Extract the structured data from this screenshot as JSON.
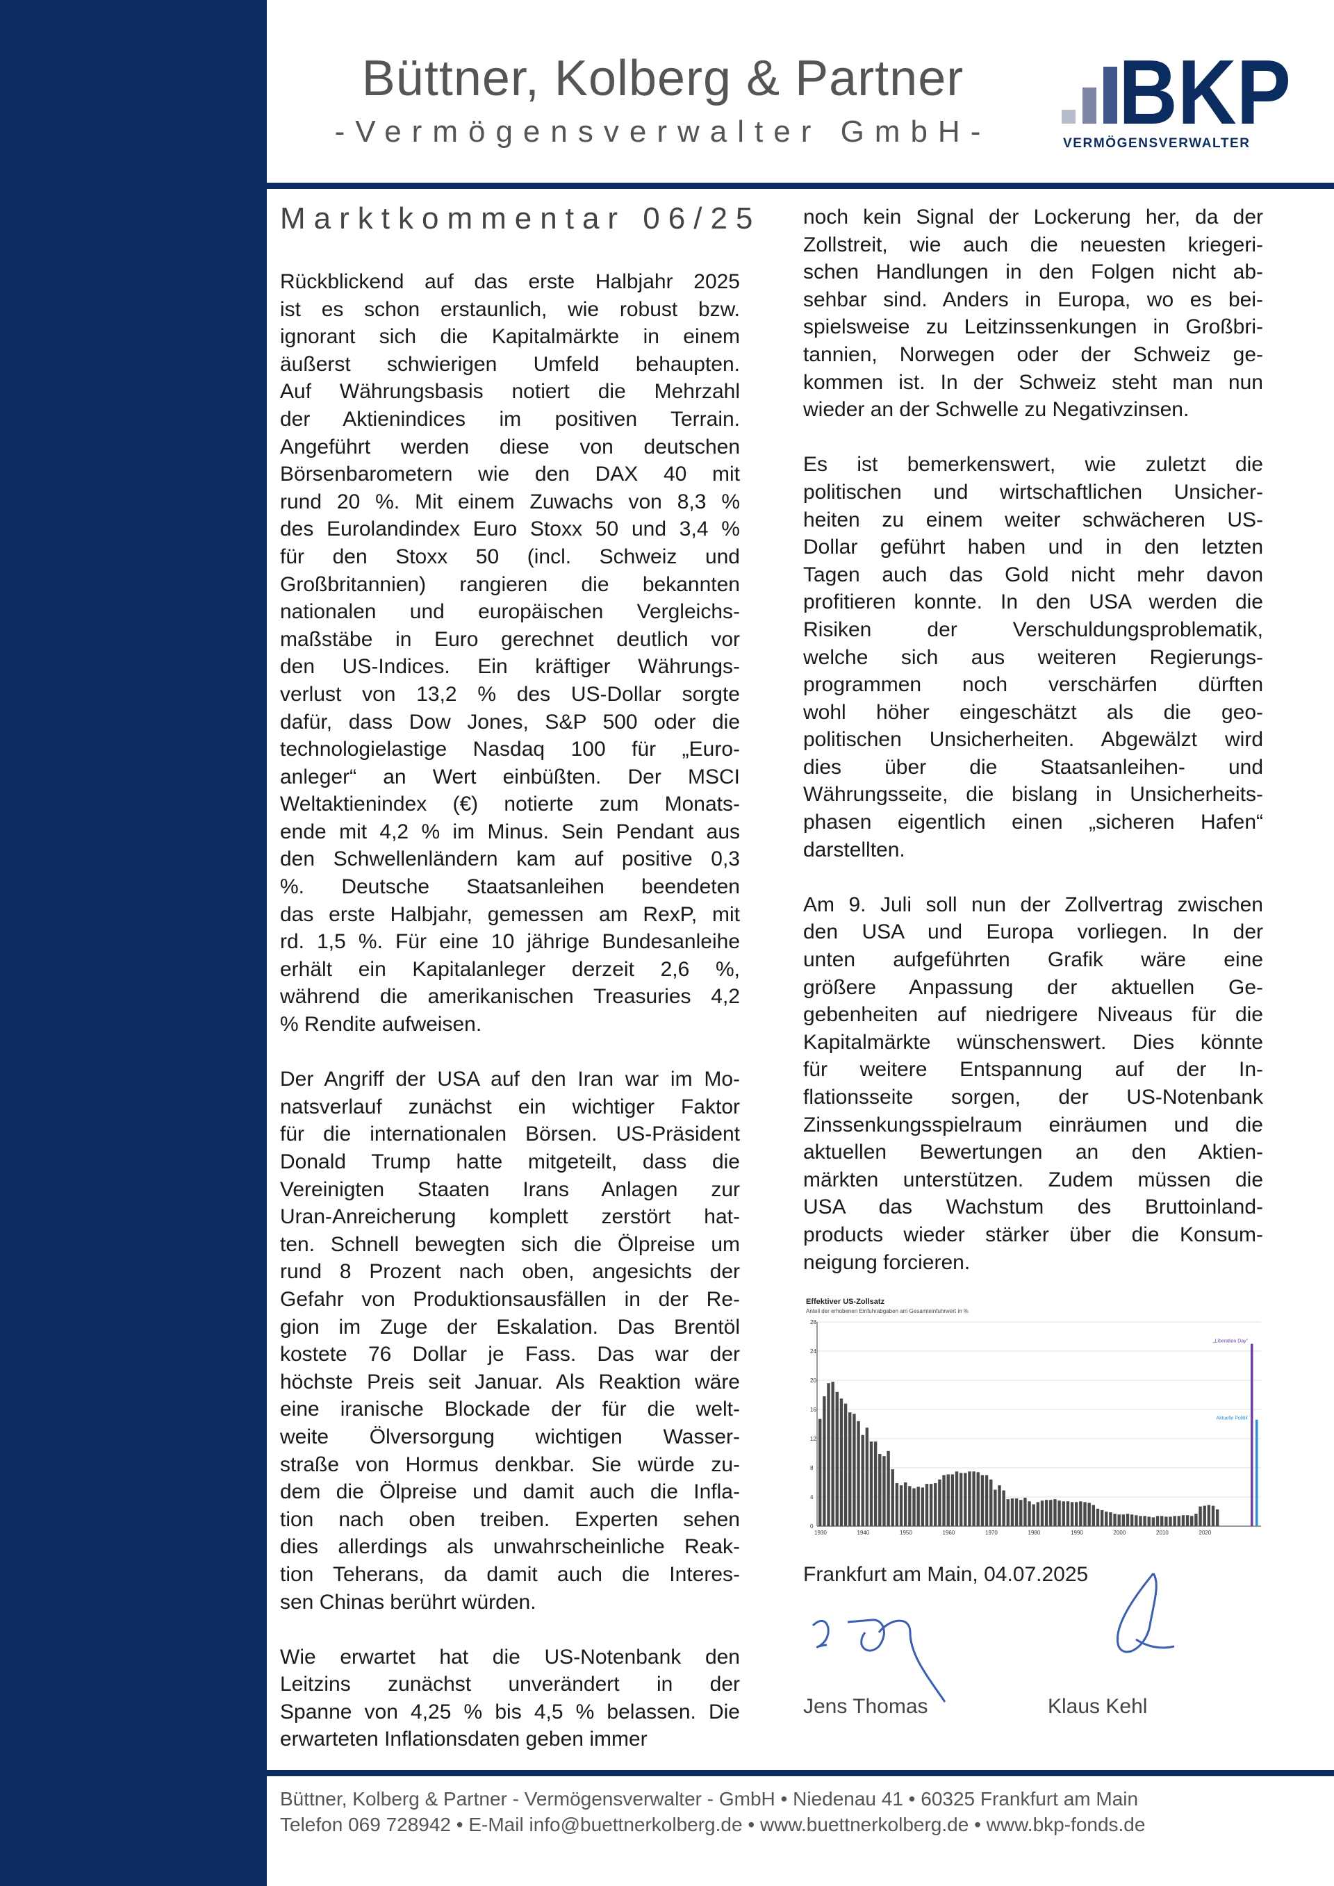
{
  "header": {
    "company": "Büttner, Kolberg & Partner",
    "subtitle": "-Vermögensverwalter GmbH-",
    "logo_text": "BKP",
    "logo_subtext": "VERMÖGENSVERWALTER"
  },
  "colors": {
    "brand_navy": "#0b2c5e",
    "chart_bar": "#4a4a4a",
    "liberation_day": "#6a3fa0",
    "aktuelle_politik": "#2a8fd6",
    "signature": "#3a5fb0"
  },
  "document": {
    "title": "Marktkommentar 06/25"
  },
  "column_left": [
    [
      "Rückblickend auf das erste Halbjahr 2025",
      "ist es schon erstaunlich, wie robust bzw.",
      "ignorant sich  die Kapitalmärkte in einem",
      "äußerst schwierigen Umfeld behaupten.",
      "Auf Währungsbasis notiert die Mehrzahl",
      "der Aktienindices im positiven Terrain.",
      "Angeführt werden diese von deutschen",
      "Börsenbarometern wie den DAX 40 mit",
      "rund 20 %. Mit einem Zuwachs von 8,3 %",
      "des Eurolandindex Euro Stoxx 50 und 3,4 %",
      "für den Stoxx 50 (incl. Schweiz und",
      "Großbritannien) rangieren die bekannten",
      "nationalen und europäischen Vergleichs-",
      "maßstäbe in Euro gerechnet deutlich vor",
      "den US-Indices. Ein kräftiger Währungs-",
      "verlust von 13,2 % des US-Dollar sorgte",
      "dafür, dass Dow Jones, S&P 500 oder die",
      "technologielastige Nasdaq 100 für „Euro-",
      "anleger“ an Wert einbüßten. Der MSCI",
      "Weltaktienindex (€) notierte  zum Monats-",
      "ende mit 4,2 % im Minus. Sein Pendant aus",
      "den Schwellenländern kam auf positive 0,3",
      "%. Deutsche Staatsanleihen beendeten",
      "das erste Halbjahr, gemessen am RexP, mit",
      "rd. 1,5 %. Für eine 10 jährige Bundesanleihe",
      "erhält ein Kapitalanleger derzeit 2,6 %,",
      "während die amerikanischen Treasuries 4,2",
      "% Rendite aufweisen."
    ],
    [
      "Der Angriff der USA auf den Iran war im Mo-",
      "natsverlauf zunächst ein wichtiger Faktor",
      "für die internationalen Börsen. US-Präsident",
      "Donald Trump hatte mitgeteilt, dass die",
      "Vereinigten Staaten Irans Anlagen zur",
      "Uran-Anreicherung komplett zerstört hat-",
      "ten. Schnell bewegten sich die Ölpreise um",
      "rund 8 Prozent nach oben, angesichts der",
      "Gefahr von Produktionsausfällen in der Re-",
      "gion im Zuge der Eskalation. Das Brentöl",
      "kostete 76 Dollar je Fass. Das war der",
      "höchste Preis seit Januar. Als Reaktion wäre",
      "eine iranische Blockade der für die welt-",
      "weite Ölversorgung wichtigen Wasser-",
      "straße von Hormus denkbar. Sie würde zu-",
      "dem die Ölpreise und damit auch die Infla-",
      "tion nach oben treiben. Experten sehen",
      "dies allerdings als unwahrscheinliche Reak-",
      "tion Teherans, da damit auch die Interes-",
      "sen Chinas berührt würden."
    ],
    [
      "Wie erwartet hat die US-Notenbank den",
      "Leitzins zunächst unverändert in der",
      "Spanne von 4,25 % bis 4,5 % belassen. Die",
      "erwarteten Inflationsdaten geben immer"
    ]
  ],
  "column_right": [
    [
      "noch kein Signal der Lockerung her, da der",
      "Zollstreit, wie auch die neuesten kriegeri-",
      "schen Handlungen in den Folgen nicht ab-",
      "sehbar sind. Anders in Europa, wo es bei-",
      "spielsweise zu Leitzinssenkungen in Großbri-",
      "tannien, Norwegen oder der Schweiz ge-",
      "kommen ist. In der Schweiz steht man nun",
      "wieder an der Schwelle zu Negativzinsen."
    ],
    [
      "Es ist bemerkenswert, wie zuletzt die",
      "politischen und wirtschaftlichen Unsicher-",
      "heiten zu einem weiter schwächeren US-",
      "Dollar geführt haben und in den letzten",
      "Tagen auch das Gold nicht mehr davon",
      "profitieren konnte. In den USA werden die",
      "Risiken der Verschuldungsproblematik,",
      "welche sich aus weiteren Regierungs-",
      "programmen noch verschärfen dürften",
      "wohl höher eingeschätzt als die geo-",
      "politischen Unsicherheiten. Abgewälzt wird",
      "dies über die Staatsanleihen- und",
      "Währungsseite, die bislang in Unsicherheits-",
      "phasen eigentlich einen „sicheren Hafen“",
      "darstellten."
    ],
    [
      "Am 9. Juli soll nun der Zollvertrag zwischen",
      "den USA und Europa vorliegen. In der",
      "unten aufgeführten Grafik wäre eine",
      "größere Anpassung der aktuellen Ge-",
      "gebenheiten auf niedrigere Niveaus für die",
      "Kapitalmärkte wünschenswert. Dies könnte",
      "für weitere Entspannung auf der In-",
      "flationsseite sorgen, der US-Notenbank",
      "Zinssenkungsspielraum einräumen und die",
      "aktuellen Bewertungen an den Aktien-",
      "märkten unterstützen. Zudem müssen die",
      "USA das Wachstum des Bruttoinland-",
      "products wieder stärker über die Konsum-",
      "neigung forcieren."
    ]
  ],
  "chart_data": {
    "type": "bar",
    "title": "Effektiver US-Zollsatz",
    "subtitle": "Anteil der erhobenen Einfuhrabgaben am Gesamteinfuhrwert in %",
    "xlabel": "",
    "ylabel": "",
    "ylim": [
      0,
      28
    ],
    "yticks": [
      0,
      4,
      8,
      12,
      16,
      20,
      24,
      28
    ],
    "xticks": [
      "1930",
      "1940",
      "1950",
      "1960",
      "1970",
      "1980",
      "1990",
      "2000",
      "2010",
      "2020"
    ],
    "grid": true,
    "x_start_year": 1930,
    "values": [
      14.7,
      17.8,
      19.6,
      19.8,
      18.4,
      17.5,
      16.8,
      15.6,
      15.4,
      14.4,
      12.5,
      13.5,
      11.6,
      11.6,
      9.9,
      9.6,
      10.3,
      7.8,
      5.9,
      5.6,
      6.0,
      5.5,
      5.2,
      5.4,
      5.3,
      5.8,
      5.8,
      5.9,
      6.4,
      7.0,
      7.1,
      7.1,
      7.5,
      7.3,
      7.3,
      7.5,
      7.5,
      7.4,
      7.0,
      7.0,
      6.4,
      5.0,
      5.6,
      4.9,
      3.7,
      3.8,
      3.8,
      3.6,
      3.9,
      3.4,
      3.0,
      3.3,
      3.5,
      3.6,
      3.6,
      3.7,
      3.5,
      3.4,
      3.4,
      3.3,
      3.3,
      3.4,
      3.3,
      3.2,
      2.9,
      2.4,
      2.2,
      2.0,
      1.9,
      1.7,
      1.6,
      1.6,
      1.7,
      1.6,
      1.5,
      1.4,
      1.4,
      1.3,
      1.2,
      1.4,
      1.4,
      1.3,
      1.3,
      1.4,
      1.4,
      1.5,
      1.5,
      1.4,
      1.7,
      2.7,
      2.8,
      2.9,
      2.8,
      2.3
    ],
    "scenarios": [
      {
        "name": "„Liberation Day“",
        "value": 25.0
      },
      {
        "name": "Aktuelle Politik",
        "value": 14.6
      }
    ]
  },
  "closing": {
    "place_date": "Frankfurt am Main, 04.07.2025",
    "signatories": [
      "Jens Thomas",
      "Klaus Kehl"
    ]
  },
  "footer": {
    "line1": "Büttner, Kolberg & Partner - Vermögensverwalter - GmbH • Niedenau 41 • 60325 Frankfurt am Main",
    "line2": "Telefon 069 728942 • E-Mail info@buettnerkolberg.de • www.buettnerkolberg.de • www.bkp-fonds.de"
  }
}
